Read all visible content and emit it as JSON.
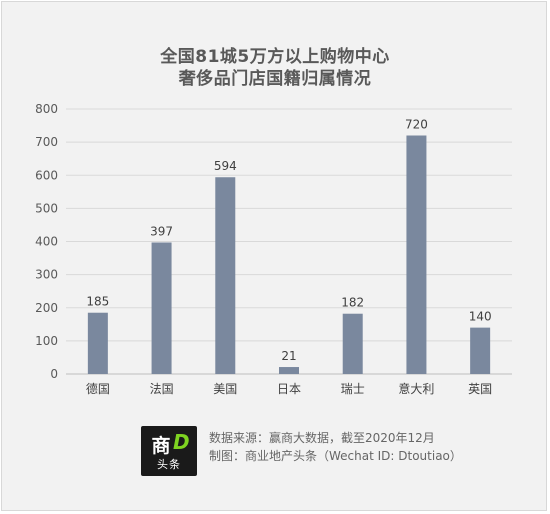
{
  "title_line1": "全国81城5万方以上购物中心",
  "title_line2": "奢侈品门店国籍归属情况",
  "chart_data": {
    "type": "bar",
    "title": "全国81城5万方以上购物中心 奢侈品门店国籍归属情况",
    "categories": [
      "德国",
      "法国",
      "美国",
      "日本",
      "瑞士",
      "意大利",
      "英国"
    ],
    "values": [
      185,
      397,
      594,
      21,
      182,
      720,
      140
    ],
    "ylim": [
      0,
      800
    ],
    "yticks": [
      0,
      100,
      200,
      300,
      400,
      500,
      600,
      700,
      800
    ],
    "grid": true,
    "bar_color": "#7a889e"
  },
  "footer": {
    "logo_main": "商",
    "logo_letter": "D",
    "logo_sub": "头条",
    "source": "数据来源：赢商大数据，截至2020年12月",
    "credit": "制图：商业地产头条（Wechat ID: Dtoutiao）"
  }
}
